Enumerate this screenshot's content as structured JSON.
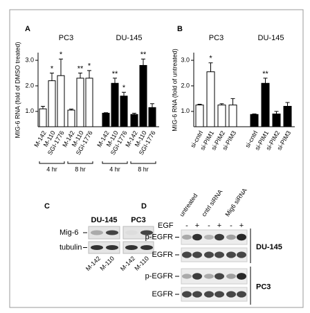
{
  "chart_data": [
    {
      "type": "bar",
      "panel": "A",
      "ylabel": "MIG-6 RNA (fold of DMSO treated)",
      "ylim": [
        0.4,
        3.3
      ],
      "yticks": [
        {
          "value": 1,
          "label": "1.0"
        },
        {
          "value": 2,
          "label": "2.0"
        },
        {
          "value": 3,
          "label": "3.0"
        }
      ],
      "series": [
        {
          "name": "PC3",
          "color": "#ffffff",
          "categories": [
            "M-142",
            "M-110",
            "SGI-1776",
            "M-142",
            "M-110",
            "SGI-1776"
          ],
          "values": [
            1.1,
            2.2,
            2.4,
            1.05,
            2.3,
            2.3
          ],
          "errors": [
            0.1,
            0.3,
            0.65,
            0.04,
            0.2,
            0.3
          ],
          "annotations": [
            null,
            "*",
            "*",
            null,
            "**",
            "*"
          ],
          "time_groups": [
            "4 hr",
            "8 hr"
          ]
        },
        {
          "name": "DU-145",
          "color": "#000000",
          "categories": [
            "M-142",
            "M-110",
            "SGI-1776",
            "M-142",
            "M-110",
            "SGI-1776"
          ],
          "values": [
            0.93,
            2.1,
            1.6,
            0.88,
            2.8,
            1.15
          ],
          "errors": [
            0.02,
            0.2,
            0.15,
            0.05,
            0.25,
            0.15
          ],
          "annotations": [
            null,
            "**",
            "*",
            null,
            "**",
            null
          ],
          "time_groups": [
            "4 hr",
            "8 hr"
          ]
        }
      ]
    },
    {
      "type": "bar",
      "panel": "B",
      "ylabel": "MIG-6 RNA (fold of untreated)",
      "ylim": [
        0.4,
        3.3
      ],
      "yticks": [
        {
          "value": 1,
          "label": "1.0"
        },
        {
          "value": 2,
          "label": "2.0"
        },
        {
          "value": 3,
          "label": "3.0"
        }
      ],
      "series": [
        {
          "name": "PC3",
          "color": "#ffffff",
          "categories": [
            "si-cntrl",
            "si-PIM1",
            "si-PIM2",
            "si-PIM3"
          ],
          "values": [
            1.25,
            2.55,
            1.25,
            1.25
          ],
          "errors": [
            0.03,
            0.35,
            0.05,
            0.25
          ],
          "annotations": [
            null,
            "*",
            null,
            null
          ]
        },
        {
          "name": "DU-145",
          "color": "#000000",
          "categories": [
            "si-cntrl",
            "si-PIM1",
            "si-PIM2",
            "si-PIM3"
          ],
          "values": [
            0.88,
            2.1,
            0.9,
            1.2
          ],
          "errors": [
            0.02,
            0.2,
            0.1,
            0.15
          ],
          "annotations": [
            null,
            "**",
            null,
            null
          ]
        }
      ]
    }
  ],
  "panel_c": {
    "label": "C",
    "cell_lines": [
      "DU-145",
      "PC3"
    ],
    "rows": [
      "Mig-6",
      "tubulin"
    ],
    "lanes": [
      "M-142",
      "M-110",
      "M-142",
      "M-110"
    ]
  },
  "panel_d": {
    "label": "D",
    "conditions": [
      "untreated",
      "cntrl siRNA",
      "Mig6 siRNA"
    ],
    "treatment": "EGF",
    "treatment_states": [
      "-",
      "+",
      "-",
      "+",
      "-",
      "+"
    ],
    "rows": [
      "p-EGFR",
      "EGFR",
      "p-EGFR",
      "EGFR"
    ],
    "cell_lines": [
      "DU-145",
      "PC3"
    ]
  }
}
